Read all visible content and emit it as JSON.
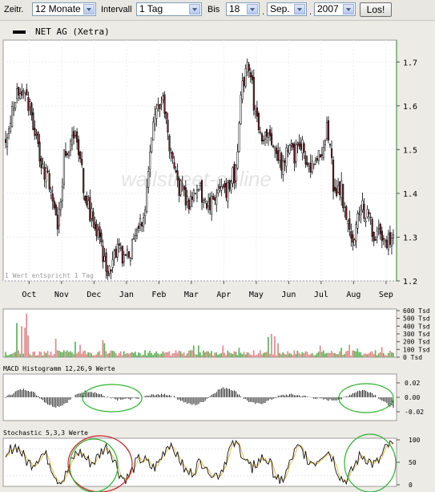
{
  "controls": {
    "zeitr_label": "Zeitr.",
    "zeitr_value": "12 Monate",
    "intervall_label": "Intervall",
    "intervall_value": "1 Tag",
    "bis_label": "Bis",
    "day_value": "18",
    "month_value": "Sep.",
    "year_value": "2007",
    "submit_label": "Los!"
  },
  "legend": {
    "label": "NET AG (Xetra)"
  },
  "watermark": "wallstreet-online",
  "colors": {
    "up": "#ffffff",
    "down": "#7a1f2a",
    "vol_up": "#63b35a",
    "vol_down": "#e08b8b",
    "stoch_k": "#111111",
    "stoch_d": "#e8c35a",
    "annot_green": "#2db52d",
    "annot_red": "#cc2020"
  },
  "chart_data": [
    {
      "type": "candlestick",
      "series_name": "NET AG (Xetra)",
      "ylim": [
        1.2,
        1.75
      ],
      "yticks": [
        "1.7",
        "1.6",
        "1.5",
        "1.4",
        "1.3",
        "1.2"
      ],
      "months": [
        "Oct",
        "Nov",
        "Dec",
        "Jan",
        "Feb",
        "Mar",
        "Apr",
        "May",
        "Jun",
        "Jul",
        "Aug",
        "Sep"
      ],
      "annotation": "1 Wert entspricht 1 Tag",
      "close_path": [
        1.52,
        1.6,
        1.64,
        1.62,
        1.58,
        1.5,
        1.45,
        1.4,
        1.32,
        1.5,
        1.52,
        1.51,
        1.4,
        1.35,
        1.3,
        1.24,
        1.22,
        1.28,
        1.25,
        1.27,
        1.3,
        1.35,
        1.5,
        1.6,
        1.62,
        1.5,
        1.42,
        1.4,
        1.38,
        1.42,
        1.39,
        1.37,
        1.38,
        1.4,
        1.42,
        1.45,
        1.65,
        1.7,
        1.58,
        1.52,
        1.53,
        1.5,
        1.47,
        1.5,
        1.49,
        1.52,
        1.47,
        1.46,
        1.5,
        1.56,
        1.4,
        1.42,
        1.33,
        1.3,
        1.38,
        1.35,
        1.3,
        1.32,
        1.29,
        1.31
      ]
    },
    {
      "type": "bar",
      "series_name": "Volume",
      "yticks": [
        "600 Tsd",
        "500 Tsd",
        "400 Tsd",
        "300 Tsd",
        "200 Tsd",
        "100 Tsd",
        "0 Tsd"
      ],
      "ylim": [
        0,
        600
      ]
    },
    {
      "type": "bar",
      "title": "MACD Histogramm 12,26,9 Werte",
      "yticks": [
        "0.02",
        "0.00",
        "-0.02"
      ],
      "ylim": [
        -0.03,
        0.03
      ]
    },
    {
      "type": "line",
      "title": "Stochastic 5,3,3 Werte",
      "yticks": [
        "100",
        "50",
        "0"
      ],
      "ylim": [
        0,
        100
      ]
    }
  ]
}
